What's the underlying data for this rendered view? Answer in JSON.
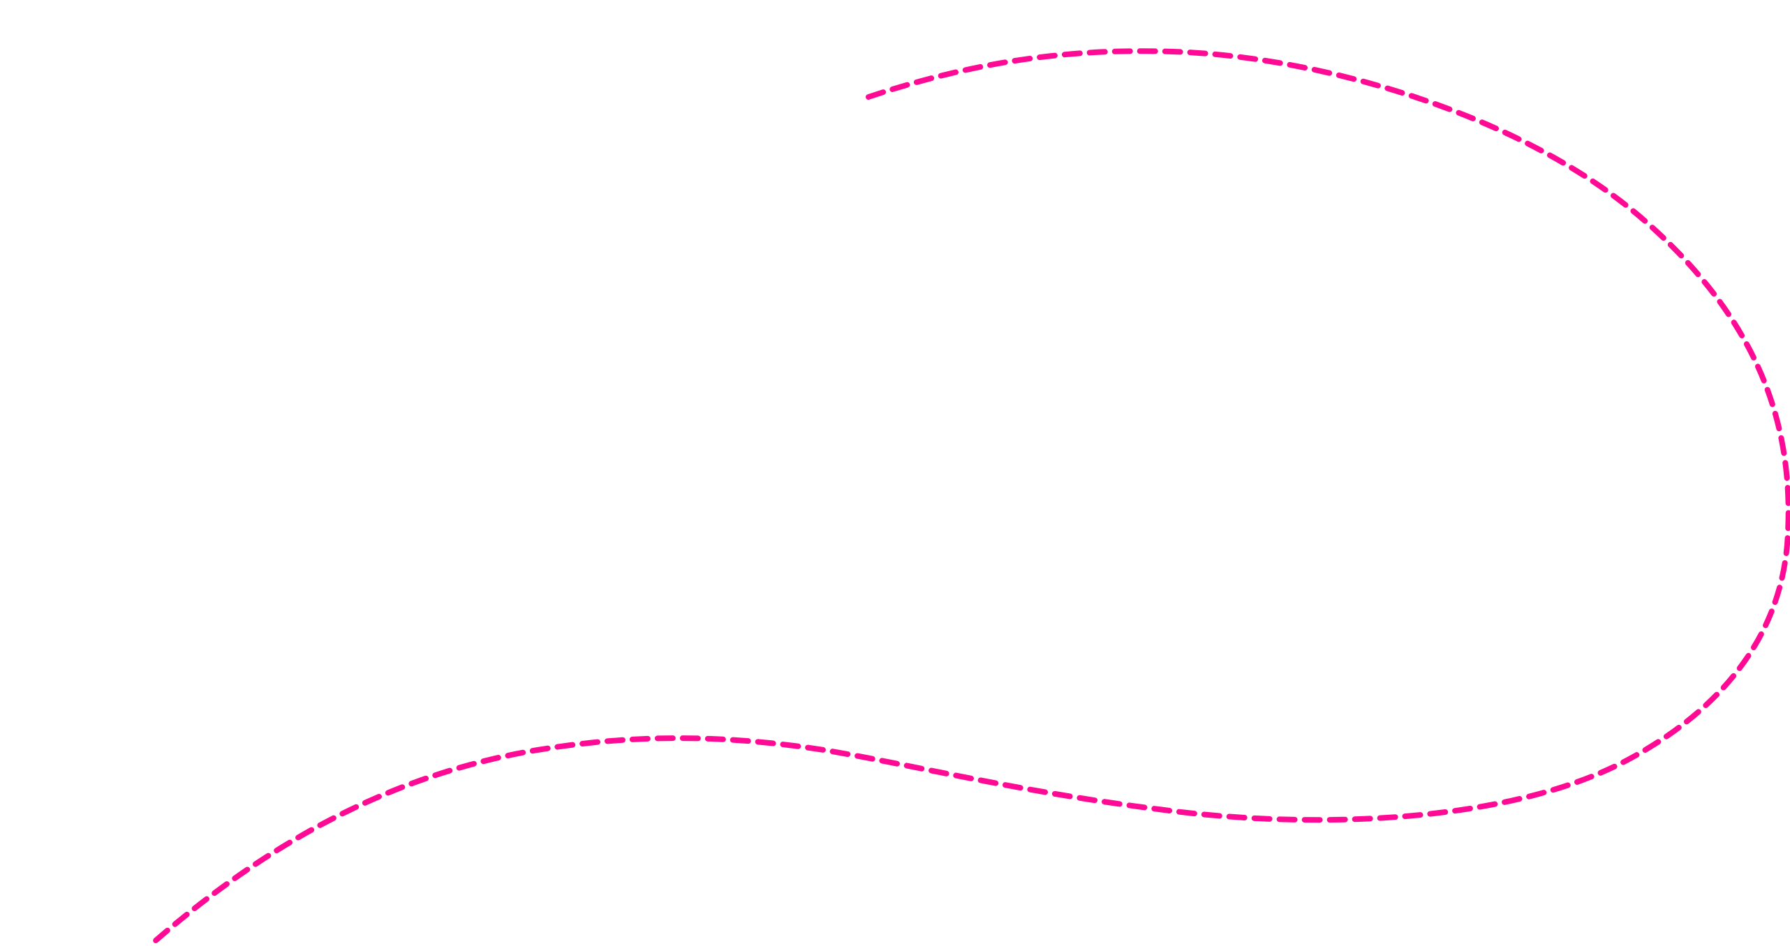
{
  "decoration": {
    "icon": "dashed-curve-icon",
    "stroke_color": "#ff0a94",
    "background_color": "#ffffff",
    "line_style": "dashed"
  }
}
